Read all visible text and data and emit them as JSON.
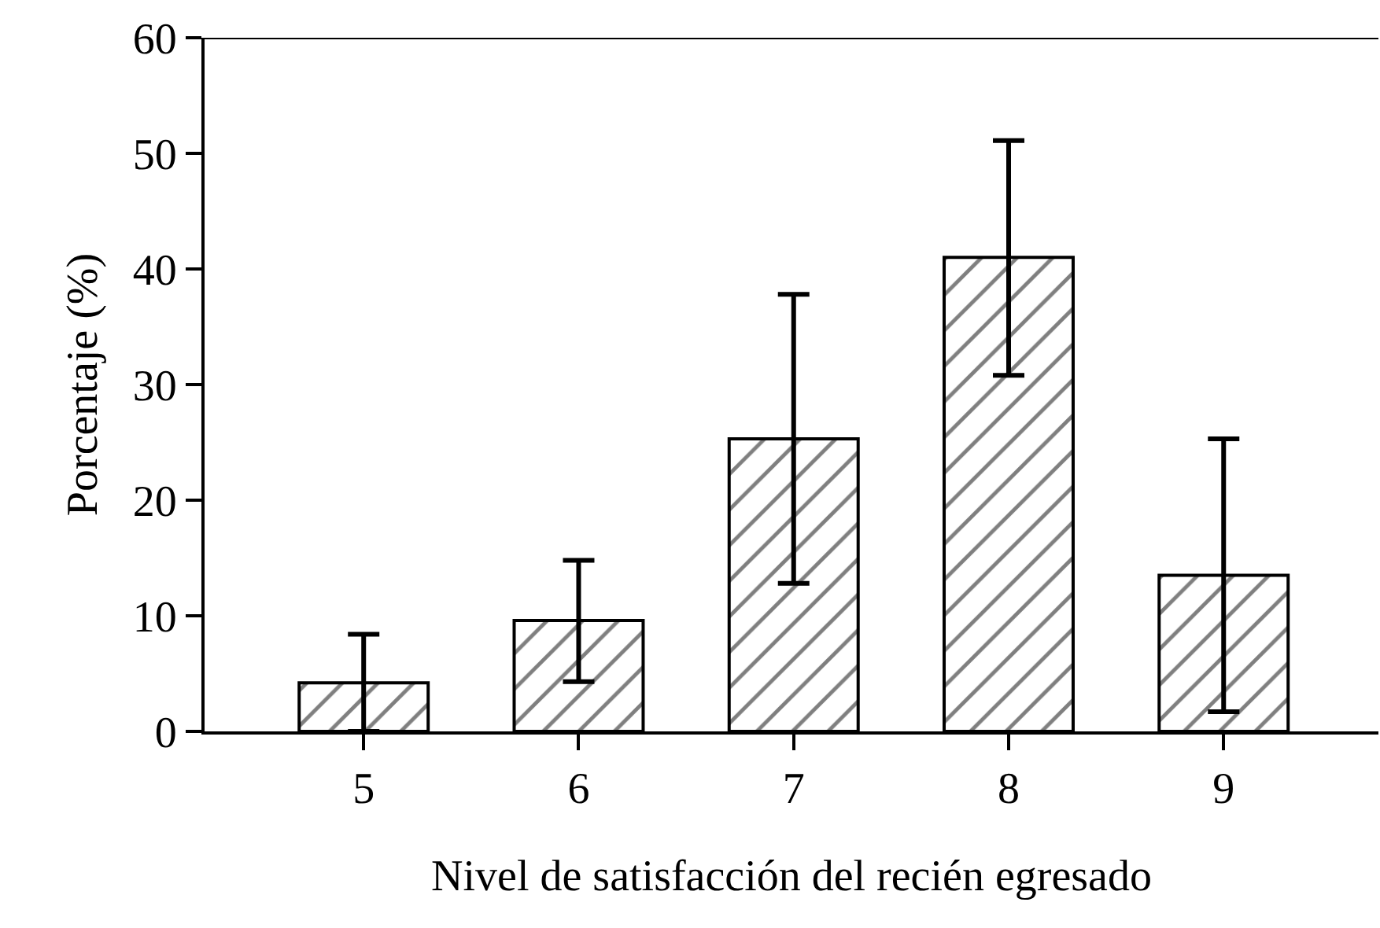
{
  "chart_data": {
    "type": "bar",
    "xlabel": "Nivel de satisfacción del recién egresado",
    "ylabel": "Porcentaje (%)",
    "categories": [
      "5",
      "6",
      "7",
      "8",
      "9"
    ],
    "values": [
      4.2,
      9.6,
      25.3,
      41.0,
      13.5
    ],
    "errors": [
      4.2,
      [
        4.3,
        14.8
      ],
      [
        12.8,
        37.8
      ],
      [
        30.8,
        51.1
      ],
      [
        1.7,
        25.3
      ]
    ],
    "color": "#000000",
    "ylim": [
      0,
      60
    ],
    "yticks": [
      0,
      10,
      20,
      30,
      40,
      50,
      60
    ]
  }
}
